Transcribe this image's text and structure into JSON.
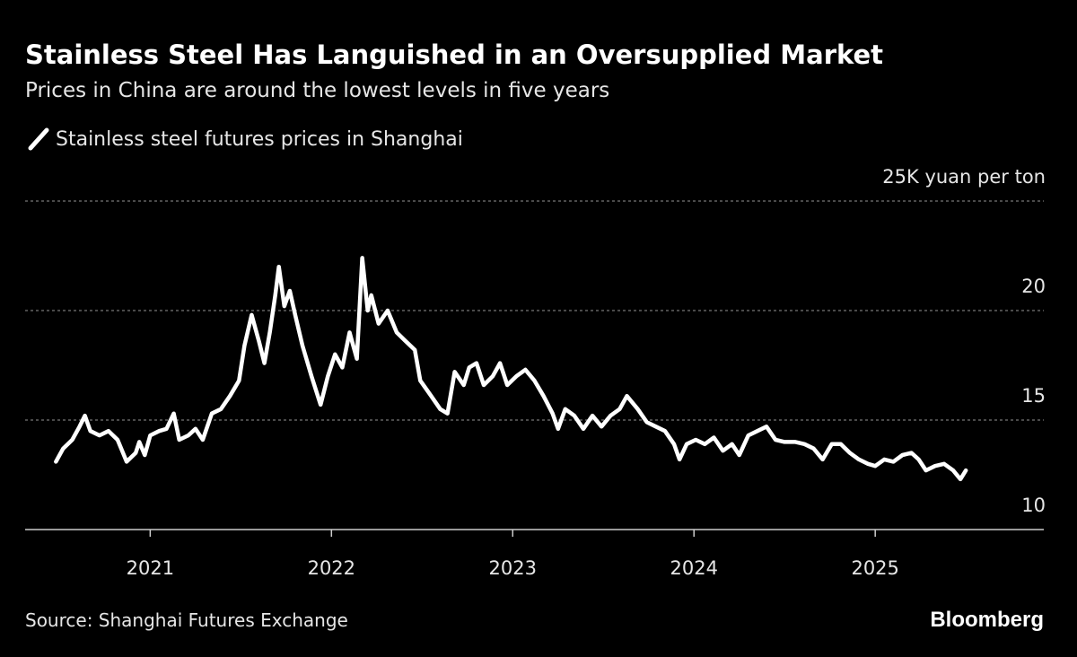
{
  "chart_data": {
    "type": "line",
    "title": "Stainless Steel Has Languished in an Oversupplied Market",
    "subtitle": "Prices in China are around the lowest levels in five years",
    "source": "Source: Shanghai Futures Exchange",
    "brand": "Bloomberg",
    "xlim": [
      2020.31,
      2025.93
    ],
    "xticks": [
      2021,
      2022,
      2023,
      2024,
      2025
    ],
    "ylim": [
      10,
      25
    ],
    "yticks": [
      10,
      15,
      20,
      {
        "value": 25,
        "label": "25K yuan per ton"
      }
    ],
    "grid": true,
    "x": [
      2020.48,
      2020.52,
      2020.57,
      2020.61,
      2020.64,
      2020.67,
      2020.72,
      2020.77,
      2020.82,
      2020.87,
      2020.92,
      2020.94,
      2020.97,
      2021.0,
      2021.05,
      2021.09,
      2021.13,
      2021.16,
      2021.21,
      2021.25,
      2021.29,
      2021.34,
      2021.39,
      2021.44,
      2021.49,
      2021.52,
      2021.56,
      2021.6,
      2021.63,
      2021.66,
      2021.69,
      2021.71,
      2021.74,
      2021.77,
      2021.8,
      2021.84,
      2021.89,
      2021.94,
      2021.98,
      2022.02,
      2022.06,
      2022.1,
      2022.14,
      2022.17,
      2022.2,
      2022.22,
      2022.26,
      2022.31,
      2022.36,
      2022.41,
      2022.46,
      2022.49,
      2022.55,
      2022.6,
      2022.64,
      2022.68,
      2022.73,
      2022.76,
      2022.8,
      2022.84,
      2022.89,
      2022.93,
      2022.97,
      2023.02,
      2023.07,
      2023.12,
      2023.17,
      2023.22,
      2023.25,
      2023.29,
      2023.34,
      2023.39,
      2023.44,
      2023.49,
      2023.54,
      2023.59,
      2023.63,
      2023.69,
      2023.74,
      2023.79,
      2023.84,
      2023.89,
      2023.92,
      2023.96,
      2024.01,
      2024.06,
      2024.11,
      2024.16,
      2024.21,
      2024.25,
      2024.3,
      2024.35,
      2024.4,
      2024.45,
      2024.5,
      2024.56,
      2024.61,
      2024.66,
      2024.71,
      2024.76,
      2024.81,
      2024.86,
      2024.91,
      2024.96,
      2025.0,
      2025.05,
      2025.1,
      2025.15,
      2025.2,
      2025.24,
      2025.28,
      2025.33,
      2025.38,
      2025.43,
      2025.47,
      2025.5
    ],
    "series": [
      {
        "name": "Stainless steel futures prices in Shanghai",
        "color": "#ffffff",
        "values": [
          13.1,
          13.7,
          14.1,
          14.7,
          15.2,
          14.5,
          14.3,
          14.5,
          14.1,
          13.1,
          13.5,
          14.0,
          13.4,
          14.3,
          14.5,
          14.6,
          15.3,
          14.1,
          14.3,
          14.6,
          14.1,
          15.3,
          15.5,
          16.1,
          16.8,
          18.4,
          19.8,
          18.6,
          17.6,
          19.0,
          20.7,
          22.0,
          20.2,
          20.9,
          19.8,
          18.4,
          17.0,
          15.7,
          17.0,
          18.0,
          17.4,
          19.0,
          17.8,
          22.4,
          20.0,
          20.7,
          19.4,
          20.0,
          19.0,
          18.6,
          18.2,
          16.8,
          16.1,
          15.5,
          15.3,
          17.2,
          16.6,
          17.4,
          17.6,
          16.6,
          17.0,
          17.6,
          16.6,
          17.0,
          17.3,
          16.8,
          16.1,
          15.3,
          14.6,
          15.5,
          15.2,
          14.6,
          15.2,
          14.7,
          15.2,
          15.5,
          16.1,
          15.5,
          14.9,
          14.7,
          14.5,
          13.9,
          13.2,
          13.9,
          14.1,
          13.9,
          14.2,
          13.6,
          13.9,
          13.4,
          14.3,
          14.5,
          14.7,
          14.1,
          14.0,
          14.0,
          13.9,
          13.7,
          13.2,
          13.9,
          13.9,
          13.5,
          13.2,
          13.0,
          12.9,
          13.2,
          13.1,
          13.4,
          13.5,
          13.2,
          12.7,
          12.9,
          13.0,
          12.7,
          12.3,
          12.7
        ]
      }
    ]
  }
}
